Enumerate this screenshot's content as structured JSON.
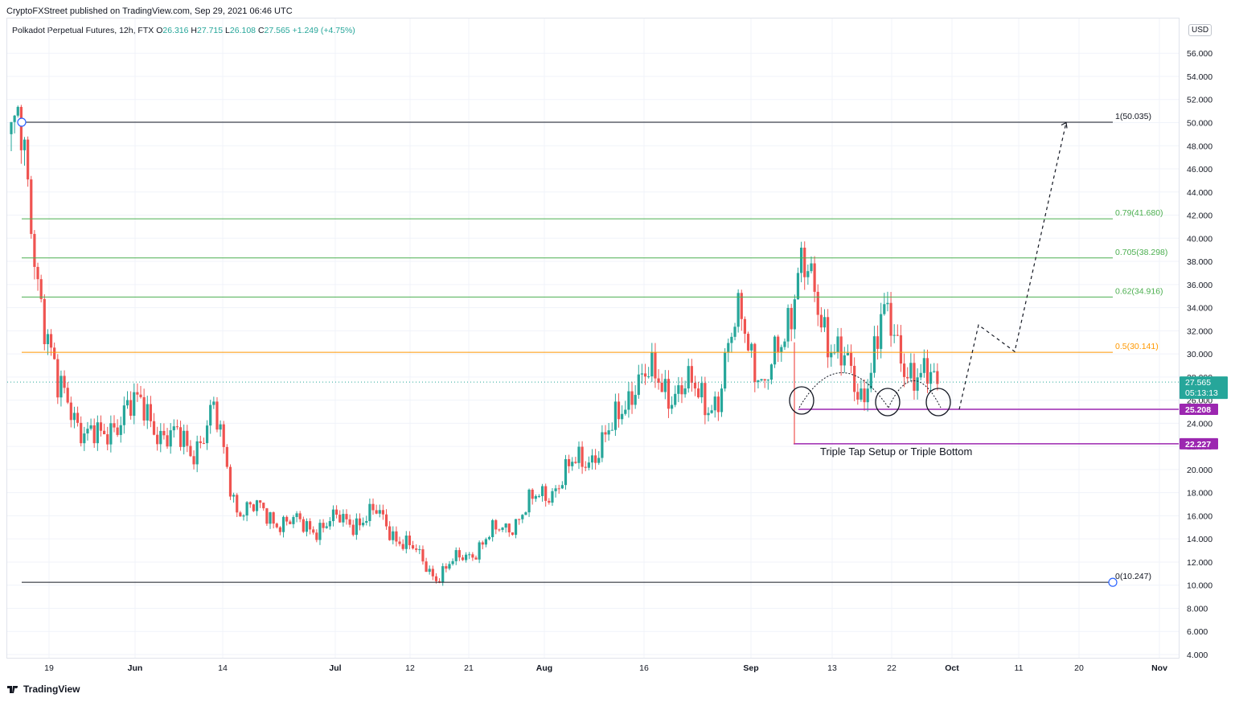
{
  "header": {
    "publish_line": "CryptoFXStreet published on TradingView.com, Sep 29, 2021 06:46 UTC",
    "symbol_line": "Polkadot Perpetual Futures, 12h, FTX",
    "o_label": "O",
    "o_value": "26.316",
    "h_label": "H",
    "h_value": "27.715",
    "l_label": "L",
    "l_value": "26.108",
    "c_label": "C",
    "c_value": "27.565",
    "change": "+1.249 (+4.75%)",
    "currency_button": "USD"
  },
  "footer": {
    "logo_text": "TradingView"
  },
  "colors": {
    "up": "#26a69a",
    "down": "#ef5350",
    "fib_green": "#4caf50",
    "fib_orange": "#ff9800",
    "purple": "#9c27b0",
    "black": "#131722",
    "grid": "#f0f3fa",
    "dotted_price": "#26a69a"
  },
  "chart_data": {
    "type": "candlestick",
    "title": "Polkadot Perpetual Futures, 12h, FTX",
    "ylim": [
      3,
      58
    ],
    "y_ticks": [
      "4.000",
      "6.000",
      "8.000",
      "10.000",
      "12.000",
      "14.000",
      "16.000",
      "18.000",
      "20.000",
      "22.000",
      "24.000",
      "26.000",
      "28.000",
      "30.000",
      "32.000",
      "34.000",
      "36.000",
      "38.000",
      "40.000",
      "42.000",
      "44.000",
      "46.000",
      "48.000",
      "50.000",
      "52.000",
      "54.000",
      "56.000"
    ],
    "x_ticks": [
      "19",
      "Jun",
      "14",
      "Jul",
      "12",
      "21",
      "Aug",
      "16",
      "Sep",
      "13",
      "22",
      "Oct",
      "11",
      "20",
      "Nov"
    ],
    "fib_levels": [
      {
        "label": "1(50.035)",
        "value": 50.035,
        "color": "#131722"
      },
      {
        "label": "0.79(41.680)",
        "value": 41.68,
        "color": "#4caf50"
      },
      {
        "label": "0.705(38.298)",
        "value": 38.298,
        "color": "#4caf50"
      },
      {
        "label": "0.62(34.916)",
        "value": 34.916,
        "color": "#4caf50"
      },
      {
        "label": "0.5(30.141)",
        "value": 30.141,
        "color": "#ff9800"
      },
      {
        "label": "0(10.247)",
        "value": 10.247,
        "color": "#131722"
      }
    ],
    "horizontal_levels": [
      {
        "label": "25.208",
        "value": 25.208,
        "color": "#9c27b0"
      },
      {
        "label": "22.227",
        "value": 22.227,
        "color": "#9c27b0"
      }
    ],
    "last_price": {
      "value": 27.565,
      "label": "27.565",
      "countdown": "05:13:13"
    },
    "annotation": "Triple Tap Setup or Triple Bottom",
    "trend_path": [
      {
        "label": "19",
        "price": 49.0
      },
      {
        "label": "19",
        "price": 38.0
      },
      {
        "label": "19",
        "price": 26.5
      },
      {
        "label": "Jun",
        "price": 22.0
      },
      {
        "label": "Jun",
        "price": 26.0
      },
      {
        "label": "14",
        "price": 21.5
      },
      {
        "label": "14",
        "price": 25.0
      },
      {
        "label": "14",
        "price": 17.0
      },
      {
        "label": "Jul",
        "price": 15.0
      },
      {
        "label": "12",
        "price": 16.0
      },
      {
        "label": "21",
        "price": 10.8
      },
      {
        "label": "Aug",
        "price": 15.5
      },
      {
        "label": "16",
        "price": 23.0
      },
      {
        "label": "16",
        "price": 28.0
      },
      {
        "label": "Sep",
        "price": 26.0
      },
      {
        "label": "Sep",
        "price": 34.5
      },
      {
        "label": "Sep",
        "price": 26.0
      },
      {
        "label": "13",
        "price": 37.5
      },
      {
        "label": "22",
        "price": 26.0
      },
      {
        "label": "22",
        "price": 33.0
      },
      {
        "label": "Oct",
        "price": 27.5
      }
    ],
    "projection": [
      {
        "label": "Oct",
        "price": 25.2
      },
      {
        "label": "Oct",
        "price": 32.5
      },
      {
        "label": "11",
        "price": 30.2
      },
      {
        "label": "20",
        "price": 50.0
      }
    ],
    "grid": true
  }
}
